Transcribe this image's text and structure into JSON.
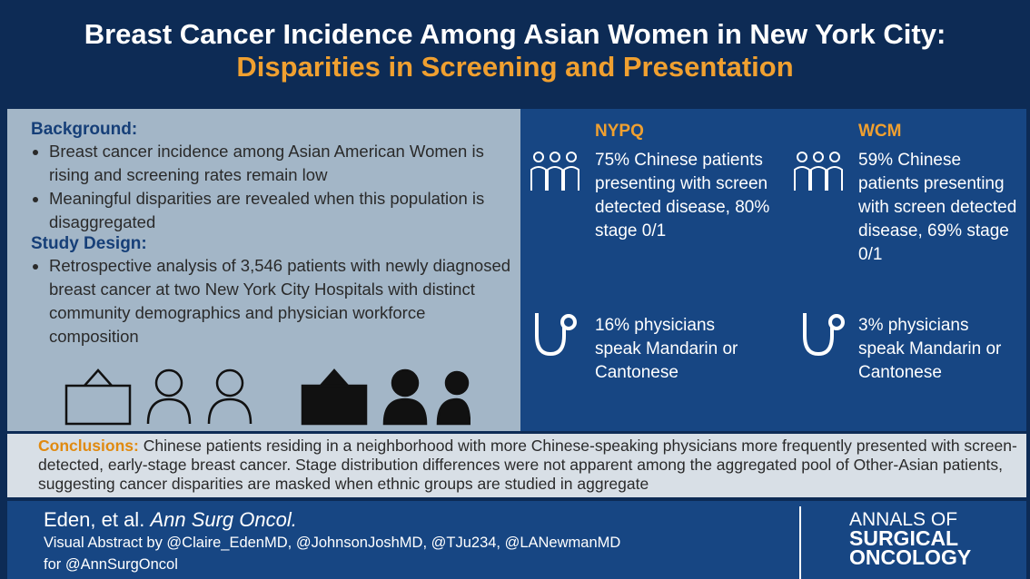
{
  "header": {
    "title": "Breast Cancer Incidence Among Asian Women in New York City:",
    "subtitle": "Disparities in Screening and Presentation"
  },
  "background": {
    "heading": "Background:",
    "bullets": [
      "Breast cancer incidence among Asian American Women is rising and screening rates remain low",
      "Meaningful disparities are revealed when this population is disaggregated"
    ]
  },
  "study_design": {
    "heading": "Study Design:",
    "bullets": [
      "Retrospective analysis of 3,546 patients with newly diagnosed breast cancer at two New York City Hospitals with distinct community demographics and physician workforce composition"
    ]
  },
  "sites": [
    {
      "name": "NYPQ",
      "patients": "75% Chinese patients presenting with screen detected disease, 80% stage 0/1",
      "physicians": "16% physicians speak Mandarin or Cantonese"
    },
    {
      "name": "WCM",
      "patients": "59% Chinese patients presenting with screen detected disease, 69% stage 0/1",
      "physicians": "3% physicians speak Mandarin or Cantonese"
    }
  ],
  "conclusions": {
    "label": "Conclusions:",
    "text": "Chinese patients residing in a neighborhood with more Chinese-speaking physicians more frequently presented with screen-detected, early-stage breast cancer. Stage distribution differences were not apparent among the aggregated pool of Other-Asian patients, suggesting cancer disparities are masked when ethnic groups are studied in aggregate"
  },
  "footer": {
    "authors": "Eden, et al.",
    "journal": "Ann Surg Oncol.",
    "visual_abstract": "Visual Abstract by @Claire_EdenMD, @JohnsonJoshMD, @TJu234, @LANewmanMD",
    "for": "for @AnnSurgOncol",
    "logo": [
      "ANNALS OF",
      "SURGICAL",
      "ONCOLOGY"
    ]
  }
}
